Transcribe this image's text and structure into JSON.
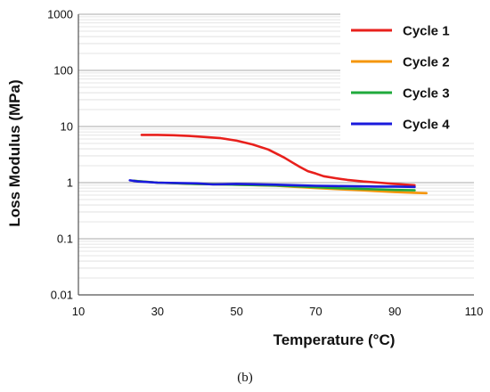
{
  "caption": "(b)",
  "chart_data": {
    "type": "line",
    "xlabel": "Temperature (°C)",
    "ylabel": "Loss Modulus (MPa)",
    "xlim": [
      10,
      110
    ],
    "x_ticks": [
      10,
      30,
      50,
      70,
      90,
      110
    ],
    "ylim": [
      0.01,
      1000
    ],
    "y_scale": "log",
    "y_ticks": [
      0.01,
      0.1,
      1,
      10,
      100,
      1000
    ],
    "y_tick_labels": [
      "0.01",
      "0.1",
      "1",
      "10",
      "100",
      "1000"
    ],
    "grid": true,
    "legend_position": "top-right",
    "series": [
      {
        "name": "Cycle 1",
        "color": "#e8201c",
        "x": [
          26,
          30,
          34,
          38,
          42,
          46,
          50,
          54,
          58,
          60,
          62,
          64,
          66,
          68,
          70,
          72,
          75,
          78,
          82,
          86,
          90,
          95
        ],
        "y": [
          7.1,
          7.1,
          7.0,
          6.8,
          6.5,
          6.2,
          5.6,
          4.8,
          3.9,
          3.3,
          2.8,
          2.3,
          1.9,
          1.6,
          1.45,
          1.3,
          1.2,
          1.12,
          1.05,
          1.0,
          0.95,
          0.9
        ]
      },
      {
        "name": "Cycle 2",
        "color": "#f5960a",
        "x": [
          24,
          30,
          40,
          50,
          60,
          65,
          70,
          75,
          80,
          85,
          90,
          95,
          98
        ],
        "y": [
          1.08,
          1.0,
          0.95,
          0.92,
          0.88,
          0.84,
          0.8,
          0.77,
          0.74,
          0.71,
          0.68,
          0.66,
          0.65
        ]
      },
      {
        "name": "Cycle 3",
        "color": "#1faa3c",
        "x": [
          24,
          30,
          40,
          50,
          60,
          65,
          70,
          75,
          80,
          85,
          90,
          95
        ],
        "y": [
          1.08,
          1.0,
          0.95,
          0.92,
          0.89,
          0.86,
          0.83,
          0.8,
          0.78,
          0.76,
          0.74,
          0.73
        ]
      },
      {
        "name": "Cycle 4",
        "color": "#1a1adc",
        "x": [
          23,
          25,
          30,
          40,
          44,
          50,
          60,
          65,
          70,
          75,
          80,
          85,
          90,
          95
        ],
        "y": [
          1.1,
          1.05,
          1.0,
          0.97,
          0.93,
          0.95,
          0.92,
          0.9,
          0.88,
          0.87,
          0.86,
          0.85,
          0.85,
          0.84
        ]
      }
    ]
  }
}
